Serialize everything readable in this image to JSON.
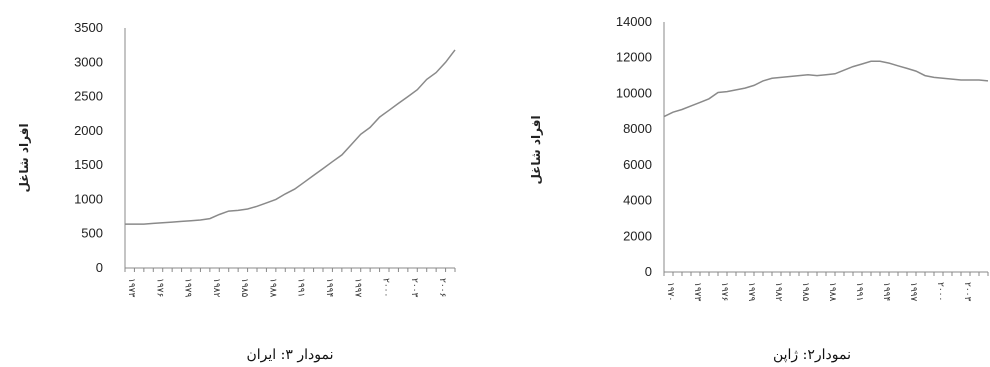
{
  "chart_data": [
    {
      "type": "line",
      "caption": "نمودار ۳: ایران",
      "ylabel": "افراد شاغل",
      "ylim": [
        0,
        3500
      ],
      "yticks": [
        0,
        500,
        1000,
        1500,
        2000,
        2500,
        3000,
        3500
      ],
      "x": [
        1973,
        1974,
        1975,
        1976,
        1977,
        1978,
        1979,
        1980,
        1981,
        1982,
        1983,
        1984,
        1985,
        1986,
        1987,
        1988,
        1989,
        1990,
        1991,
        1992,
        1993,
        1994,
        1995,
        1996,
        1997,
        1998,
        1999,
        2000,
        2001,
        2002,
        2003,
        2004,
        2005,
        2006,
        2007,
        2008
      ],
      "x_tick_labels": [
        "۱۹۷۳",
        "۱۹۷۶",
        "۱۹۷۹",
        "۱۹۸۲",
        "۱۹۸۵",
        "۱۹۸۸",
        "۱۹۹۱",
        "۱۹۹۴",
        "۱۹۹۷",
        "۲۰۰۰",
        "۲۰۰۳",
        "۲۰۰۶"
      ],
      "series": [
        {
          "values": [
            640,
            640,
            640,
            650,
            660,
            670,
            680,
            690,
            700,
            720,
            780,
            830,
            840,
            860,
            900,
            950,
            1000,
            1080,
            1150,
            1250,
            1350,
            1450,
            1550,
            1650,
            1800,
            1950,
            2050,
            2200,
            2300,
            2400,
            2500,
            2600,
            2750,
            2850,
            3000,
            3180
          ]
        }
      ]
    },
    {
      "type": "line",
      "caption": "نمودار۲: ژاپن",
      "ylabel": "افراد شاغل",
      "ylim": [
        0,
        14000
      ],
      "yticks": [
        0,
        2000,
        4000,
        6000,
        8000,
        10000,
        12000,
        14000
      ],
      "x": [
        1970,
        1971,
        1972,
        1973,
        1974,
        1975,
        1976,
        1977,
        1978,
        1979,
        1980,
        1981,
        1982,
        1983,
        1984,
        1985,
        1986,
        1987,
        1988,
        1989,
        1990,
        1991,
        1992,
        1993,
        1994,
        1995,
        1996,
        1997,
        1998,
        1999,
        2000,
        2001,
        2002,
        2003,
        2004,
        2005,
        2006
      ],
      "x_tick_labels": [
        "۱۹۷۰",
        "۱۹۷۳",
        "۱۹۷۶",
        "۱۹۷۹",
        "۱۹۸۲",
        "۱۹۸۵",
        "۱۹۸۸",
        "۱۹۹۱",
        "۱۹۹۴",
        "۱۹۹۷",
        "۲۰۰۰",
        "۲۰۰۳",
        "۲۰۰۶"
      ],
      "series": [
        {
          "values": [
            8700,
            8950,
            9100,
            9300,
            9500,
            9700,
            10050,
            10100,
            10200,
            10300,
            10450,
            10700,
            10850,
            10900,
            10950,
            11000,
            11050,
            11000,
            11050,
            11100,
            11300,
            11500,
            11650,
            11800,
            11800,
            11700,
            11550,
            11400,
            11250,
            11000,
            10900,
            10850,
            10800,
            10750,
            10750,
            10750,
            10700
          ]
        }
      ]
    }
  ]
}
